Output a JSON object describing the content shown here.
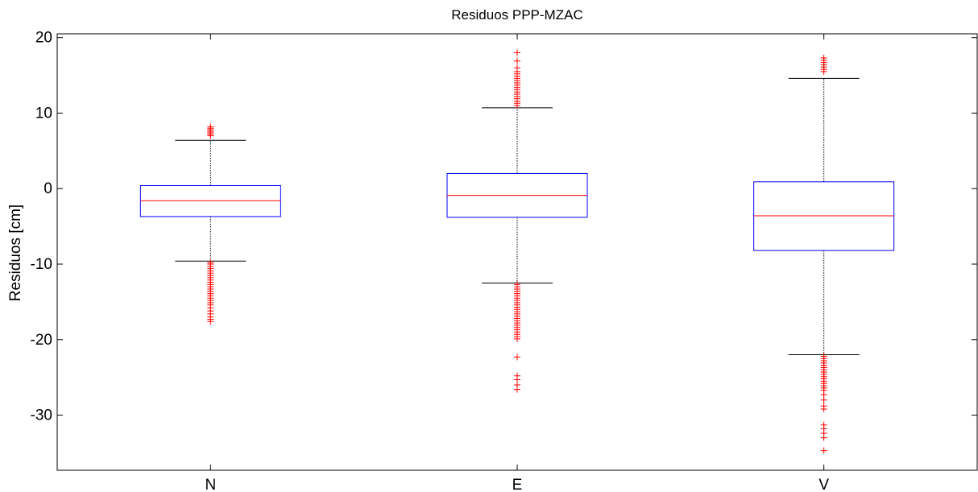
{
  "chart_data": {
    "type": "boxplot",
    "title": "Residuos PPP-MZAC",
    "xlabel": "",
    "ylabel": "Residuos [cm]",
    "ylim": [
      -37.3,
      20.5
    ],
    "yticks": [
      20,
      10,
      0,
      -10,
      -20,
      -30
    ],
    "categories": [
      "N",
      "E",
      "V"
    ],
    "grid": false,
    "colors": {
      "box": "#0000ff",
      "median": "#ff0000",
      "whisker": "#000000",
      "outlier": "#ff0000",
      "axis": "#000000"
    },
    "boxes": [
      {
        "label": "N",
        "q1": -3.7,
        "median": -1.6,
        "q3": 0.4,
        "whisker_low": -9.6,
        "whisker_high": 6.4,
        "outliers_high": [
          7.0,
          7.2,
          7.4,
          7.6,
          7.8,
          8.0,
          8.2
        ],
        "outliers_low": [
          -9.8,
          -10.0,
          -10.3,
          -10.6,
          -10.9,
          -11.2,
          -11.5,
          -11.8,
          -12.1,
          -12.4,
          -12.7,
          -13.0,
          -13.3,
          -13.6,
          -13.9,
          -14.2,
          -14.5,
          -14.8,
          -15.1,
          -15.4,
          -15.8,
          -16.2,
          -16.6,
          -17.0,
          -17.3,
          -17.6
        ]
      },
      {
        "label": "E",
        "q1": -3.8,
        "median": -0.9,
        "q3": 2.0,
        "whisker_low": -12.5,
        "whisker_high": 10.7,
        "outliers_high": [
          11.0,
          11.3,
          11.6,
          11.9,
          12.2,
          12.5,
          12.8,
          13.1,
          13.4,
          13.7,
          14.0,
          14.3,
          14.6,
          14.9,
          15.2,
          15.5,
          16.0,
          16.9,
          18.0
        ],
        "outliers_low": [
          -12.7,
          -13.0,
          -13.3,
          -13.6,
          -13.9,
          -14.2,
          -14.5,
          -14.8,
          -15.1,
          -15.4,
          -15.7,
          -16.0,
          -16.3,
          -16.6,
          -16.9,
          -17.2,
          -17.5,
          -17.8,
          -18.1,
          -18.4,
          -18.7,
          -19.0,
          -19.3,
          -19.6,
          -19.9,
          -22.3,
          -24.8,
          -25.3,
          -26.0,
          -26.6
        ]
      },
      {
        "label": "V",
        "q1": -8.2,
        "median": -3.6,
        "q3": 0.9,
        "whisker_low": -22.0,
        "whisker_high": 14.6,
        "outliers_high": [
          15.5,
          15.8,
          16.1,
          16.4,
          16.7,
          17.0,
          17.3
        ],
        "outliers_low": [
          -22.2,
          -22.5,
          -22.8,
          -23.1,
          -23.4,
          -23.7,
          -24.0,
          -24.3,
          -24.6,
          -24.9,
          -25.2,
          -25.5,
          -25.8,
          -26.1,
          -26.4,
          -26.7,
          -27.3,
          -28.0,
          -28.8,
          -29.2,
          -31.3,
          -31.8,
          -32.4,
          -33.0,
          -34.7
        ]
      }
    ]
  }
}
